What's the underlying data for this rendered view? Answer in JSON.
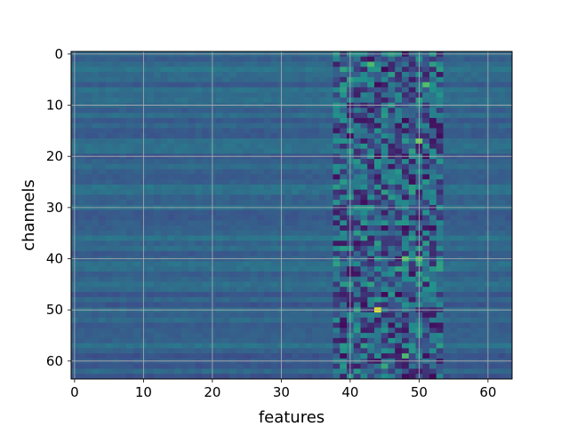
{
  "chart_data": {
    "type": "heatmap",
    "xlabel": "features",
    "ylabel": "channels",
    "x_range": [
      0,
      63
    ],
    "y_range": [
      0,
      63
    ],
    "y_inverted": true,
    "x_ticks": [
      0,
      10,
      20,
      30,
      40,
      50,
      60
    ],
    "y_ticks": [
      0,
      10,
      20,
      30,
      40,
      50,
      60
    ],
    "grid": true,
    "colormap": "viridis",
    "colormap_stops": [
      "#440154",
      "#3b528b",
      "#21918c",
      "#5ec962",
      "#fde725"
    ],
    "background_level": 0.32,
    "columns": 64,
    "rows": 64,
    "band_columns": [
      38,
      53
    ],
    "hot_cells": [
      {
        "channel": 2,
        "feature": 43,
        "value": 0.68
      },
      {
        "channel": 3,
        "feature": 45,
        "value": 0.02
      },
      {
        "channel": 6,
        "feature": 51,
        "value": 0.7
      },
      {
        "channel": 17,
        "feature": 50,
        "value": 0.78
      },
      {
        "channel": 40,
        "feature": 48,
        "value": 0.72
      },
      {
        "channel": 40,
        "feature": 50,
        "value": 0.7
      },
      {
        "channel": 50,
        "feature": 44,
        "value": 0.95
      },
      {
        "channel": 59,
        "feature": 48,
        "value": 0.68
      },
      {
        "channel": 61,
        "feature": 45,
        "value": 0.6
      }
    ]
  }
}
